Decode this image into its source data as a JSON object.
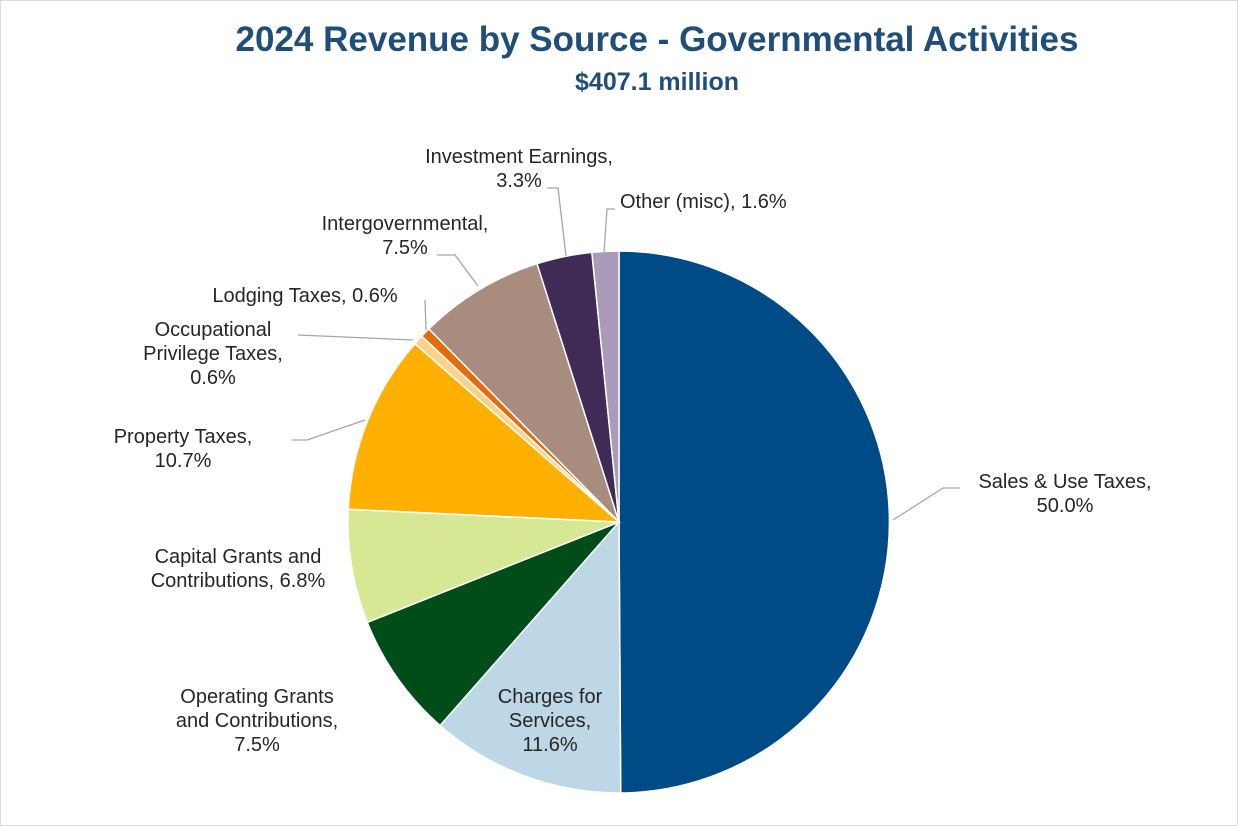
{
  "chart_data": {
    "type": "pie",
    "title": "2024 Revenue by Source - Governmental Activities",
    "subtitle": "$407.1 million",
    "slices": [
      {
        "name": "Sales & Use Taxes",
        "value": 50.0,
        "color": "#004a86",
        "label_lines": [
          "Sales & Use Taxes,",
          "50.0%"
        ]
      },
      {
        "name": "Charges for Services",
        "value": 11.6,
        "color": "#bdd7e7",
        "label_lines": [
          "Charges for",
          "Services,",
          "11.6%"
        ]
      },
      {
        "name": "Operating Grants and Contributions",
        "value": 7.5,
        "color": "#004d1a",
        "label_lines": [
          "Operating Grants",
          "and Contributions,",
          "7.5%"
        ]
      },
      {
        "name": "Capital Grants and Contributions",
        "value": 6.8,
        "color": "#d7e894",
        "label_lines": [
          "Capital Grants and",
          "Contributions, 6.8%"
        ]
      },
      {
        "name": "Property Taxes",
        "value": 10.7,
        "color": "#ffb000",
        "label_lines": [
          "Property Taxes,",
          "10.7%"
        ]
      },
      {
        "name": "Occupational Privilege Taxes",
        "value": 0.6,
        "color": "#fcd28a",
        "label_lines": [
          "Occupational",
          "Privilege Taxes,",
          "0.6%"
        ]
      },
      {
        "name": "Lodging Taxes",
        "value": 0.6,
        "color": "#e46c0a",
        "label_lines": [
          "Lodging Taxes, 0.6%"
        ]
      },
      {
        "name": "Intergovernmental",
        "value": 7.5,
        "color": "#a88c7d",
        "label_lines": [
          "Intergovernmental,",
          "7.5%"
        ]
      },
      {
        "name": "Investment Earnings",
        "value": 3.3,
        "color": "#3f2b56",
        "label_lines": [
          "Investment Earnings,",
          "3.3%"
        ]
      },
      {
        "name": "Other (misc)",
        "value": 1.6,
        "color": "#ab9ab9",
        "label_lines": [
          "Other (misc), 1.6%"
        ]
      }
    ]
  }
}
